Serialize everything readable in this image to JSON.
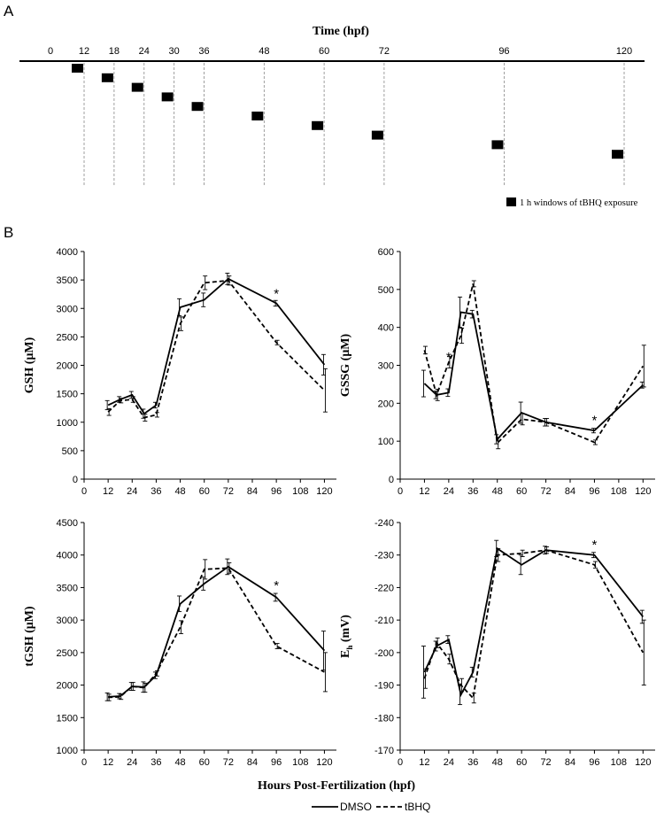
{
  "panel_a": {
    "label": "A",
    "title": "Time (hpf)",
    "ticks": [
      0,
      12,
      18,
      24,
      30,
      36,
      48,
      60,
      72,
      96,
      120
    ],
    "windows": [
      12,
      18,
      24,
      30,
      36,
      48,
      60,
      72,
      96,
      120
    ],
    "legend": "1 h windows of tBHQ exposure"
  },
  "panel_b": {
    "label": "B",
    "xlabel": "Hours Post-Fertilization (hpf)",
    "legend": [
      {
        "name": "DMSO",
        "style": "solid"
      },
      {
        "name": "tBHQ",
        "style": "dashed"
      }
    ]
  },
  "chart_data": [
    {
      "type": "line",
      "id": "gsh",
      "ylabel": "GSH (μM)",
      "x": [
        12,
        18,
        24,
        30,
        36,
        48,
        60,
        72,
        96,
        120
      ],
      "xticks": [
        0,
        12,
        24,
        36,
        48,
        60,
        72,
        84,
        96,
        108,
        120
      ],
      "xlim": [
        0,
        126
      ],
      "ylim": [
        0,
        4000
      ],
      "yticks": [
        0,
        500,
        1000,
        1500,
        2000,
        2500,
        3000,
        3500,
        4000
      ],
      "series": [
        {
          "name": "DMSO",
          "values": [
            1300,
            1400,
            1480,
            1150,
            1300,
            3020,
            3150,
            3520,
            3090,
            2010
          ],
          "errors": [
            80,
            50,
            60,
            80,
            50,
            150,
            120,
            100,
            50,
            180
          ]
        },
        {
          "name": "tBHQ",
          "values": [
            1180,
            1380,
            1400,
            1080,
            1130,
            2730,
            3450,
            3490,
            2400,
            1560
          ],
          "errors": [
            60,
            40,
            50,
            60,
            40,
            120,
            120,
            80,
            40,
            380
          ]
        }
      ],
      "annotations": [
        {
          "x": 96,
          "y": 3280,
          "text": "*"
        }
      ]
    },
    {
      "type": "line",
      "id": "gssg",
      "ylabel": "GSSG (μM)",
      "x": [
        12,
        18,
        24,
        30,
        36,
        48,
        60,
        72,
        96,
        120
      ],
      "xticks": [
        0,
        12,
        24,
        36,
        48,
        60,
        72,
        84,
        96,
        108,
        120
      ],
      "xlim": [
        0,
        126
      ],
      "ylim": [
        0,
        600
      ],
      "yticks": [
        0,
        100,
        200,
        300,
        400,
        500,
        600
      ],
      "series": [
        {
          "name": "DMSO",
          "values": [
            252,
            222,
            228,
            440,
            435,
            105,
            175,
            150,
            128,
            248
          ],
          "errors": [
            35,
            10,
            10,
            40,
            10,
            12,
            28,
            10,
            6,
            8
          ]
        },
        {
          "name": "tBHQ",
          "values": [
            340,
            222,
            308,
            378,
            515,
            95,
            158,
            150,
            97,
            298
          ],
          "errors": [
            10,
            15,
            15,
            20,
            8,
            15,
            15,
            10,
            6,
            55
          ]
        }
      ],
      "annotations": [
        {
          "x": 24,
          "y": 325,
          "text": "*"
        },
        {
          "x": 96,
          "y": 158,
          "text": "*"
        }
      ]
    },
    {
      "type": "line",
      "id": "tgsh",
      "ylabel": "tGSH (μM)",
      "x": [
        12,
        18,
        24,
        30,
        36,
        48,
        60,
        72,
        96,
        120
      ],
      "xticks": [
        0,
        12,
        24,
        36,
        48,
        60,
        72,
        84,
        96,
        108,
        120
      ],
      "xlim": [
        0,
        126
      ],
      "ylim": [
        1000,
        4500
      ],
      "yticks": [
        1000,
        1500,
        2000,
        2500,
        3000,
        3500,
        4000,
        4500
      ],
      "series": [
        {
          "name": "DMSO",
          "values": [
            1820,
            1830,
            1980,
            1970,
            2150,
            3250,
            3560,
            3820,
            3350,
            2530
          ],
          "errors": [
            60,
            40,
            60,
            80,
            50,
            120,
            100,
            120,
            60,
            300
          ]
        },
        {
          "name": "tBHQ",
          "values": [
            1810,
            1820,
            1980,
            1960,
            2180,
            2890,
            3780,
            3800,
            2600,
            2200
          ],
          "errors": [
            50,
            40,
            60,
            70,
            40,
            100,
            150,
            80,
            40,
            300
          ]
        }
      ],
      "annotations": [
        {
          "x": 96,
          "y": 3550,
          "text": "*"
        }
      ]
    },
    {
      "type": "line",
      "id": "eh",
      "ylabel": "Eh (mV)",
      "ylabel_main": "E",
      "ylabel_sub": "h",
      "ylabel_rest": " (mV)",
      "x": [
        12,
        18,
        24,
        30,
        36,
        48,
        60,
        72,
        96,
        120
      ],
      "xticks": [
        0,
        12,
        24,
        36,
        48,
        60,
        72,
        84,
        96,
        108,
        120
      ],
      "xlim": [
        0,
        126
      ],
      "ylim": [
        -170,
        -240
      ],
      "yticks": [
        -170,
        -180,
        -190,
        -200,
        -210,
        -220,
        -230,
        -240
      ],
      "series": [
        {
          "name": "DMSO",
          "values": [
            -194,
            -202,
            -204,
            -187,
            -194,
            -232,
            -227,
            -231.5,
            -230,
            -211
          ],
          "errors": [
            8,
            1.5,
            1.2,
            3,
            1.5,
            2.5,
            3,
            1.2,
            0.8,
            2
          ]
        },
        {
          "name": "tBHQ",
          "values": [
            -192,
            -203,
            -198,
            -190,
            -186,
            -230,
            -230.5,
            -231.5,
            -227,
            -200
          ],
          "errors": [
            3,
            1.5,
            1.5,
            2,
            1.5,
            2,
            1,
            1,
            1,
            10
          ]
        }
      ],
      "annotations": [
        {
          "x": 96,
          "y": -233.5,
          "text": "*"
        }
      ]
    }
  ]
}
